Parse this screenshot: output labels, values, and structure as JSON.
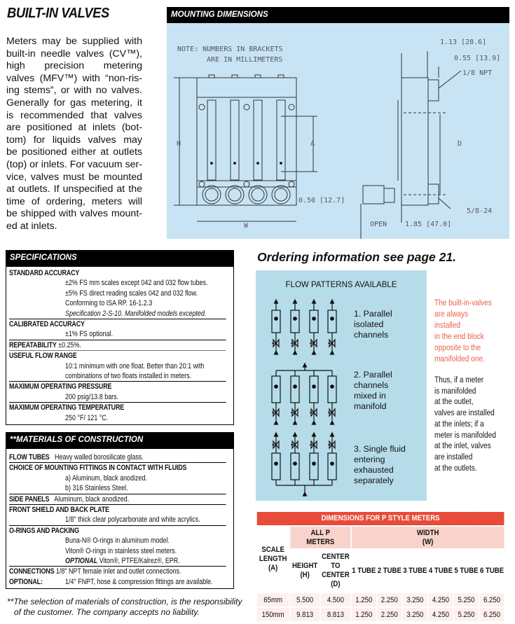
{
  "title": "BUILT-IN VALVES",
  "intro_lines": [
    "Meters may be supplied with",
    "built-in needle valves (CV™),",
    "high precision metering",
    "valves (MFV™) with “non-ris-",
    "ing stems”, or with no valves.",
    "Generally for gas metering, it",
    "is recommended that valves",
    "are positioned at inlets (bot-",
    "tom) for liquids valves may",
    "be positioned either at outlets",
    "(top) or inlets. For vacuum ser-",
    "vice, valves must be mounted",
    "at outlets. If unspecified at the",
    "time of ordering, meters will",
    "be shipped with valves mount-",
    "ed at inlets."
  ],
  "mounting": {
    "header": "MOUNTING DIMENSIONS",
    "note1": "NOTE: NUMBERS IN BRACKETS",
    "note2": "ARE IN MILLIMETERS",
    "H": "H",
    "A": "A",
    "W": "W",
    "D": "D",
    "d050": "0.50 [12.7]",
    "d113": "1.13 [28.6]",
    "d055": "0.55 [13.9]",
    "npt": "1/8 NPT",
    "thread": "5/8-24",
    "open": "OPEN",
    "d185": "1.85 [47.0]"
  },
  "specs": {
    "header": "SPECIFICATIONS",
    "std_label": "STANDARD ACCURACY",
    "std1": "±2% FS mm scales except 042 and 032 flow tubes.",
    "std2": "±5% FS direct reading scales 042 and 032 flow.",
    "std3": "Conforming to ISA RP. 16-1.2.3",
    "std4": "Specification 2-S-10. Manifolded models excepted.",
    "cal_label": "CALIBRATED ACCURACY",
    "cal1": "±1% FS optional.",
    "rep_label": "REPEATABILITY",
    "rep1": "±0.25%.",
    "flow_label": "USEFUL FLOW RANGE",
    "flow1": "10:1 minimum with one float. Better than 20:1 with",
    "flow2": "combinations of two floats installed in meters.",
    "pres_label": "MAXIMUM OPERATING PRESSURE",
    "pres1": "200 psig/13.8 bars.",
    "temp_label": "MAXIMUM OPERATING TEMPERATURE",
    "temp1": "250 °F/ 121 °C."
  },
  "materials": {
    "header": "**MATERIALS OF CONSTRUCTION",
    "tubes_label": "FLOW TUBES",
    "tubes1": "Heavy walled borosilicate glass.",
    "fit_label": "CHOICE OF MOUNTING FITTINGS IN CONTACT WITH FLUIDS",
    "fit1": "a)   Aluminum, black anodized.",
    "fit2": "b)  316 Stainless Steel.",
    "side_label": "SIDE PANELS",
    "side1": "Aluminum, black anodized.",
    "shield_label": "FRONT SHIELD AND BACK PLATE",
    "shield1": "1/8\" thick clear polycarbonate and white acrylics.",
    "oring_label": "O-RINGS AND PACKING",
    "oring1": "Buna-N® O-rings in aluminum model.",
    "oring2": "Viton® O-rings in stainless steel meters.",
    "oring3_em": "OPTIONAL",
    "oring3": " Viton®, PTFE/Kalrez®, EPR.",
    "conn_label": "CONNECTIONS",
    "conn1": "1/8\" NPT female inlet and outlet connections.",
    "opt_label": "OPTIONAL:",
    "opt1": "1/4\" FNPT, hose & compression fittings are available."
  },
  "footnote1": "**The selection of materials of construction, is the responsibility",
  "footnote2": "of the customer. The company accepts no liability.",
  "ordering": "Ordering information see page 21.",
  "flow": {
    "title": "FLOW PATTERNS AVAILABLE",
    "p1": [
      "1. Parallel",
      "isolated",
      "channels"
    ],
    "p2": [
      "2. Parallel",
      "channels",
      "mixed in",
      "manifold"
    ],
    "p3": [
      "3. Single fluid",
      "entering",
      "exhausted",
      "separately"
    ]
  },
  "note_red": [
    "The built-in-valves",
    "are always",
    "installed",
    "in the end block",
    "opposite to the",
    "manifolded one."
  ],
  "note_black": [
    "Thus, if a meter",
    "is manifolded",
    "at the outlet,",
    "valves are installed",
    "at the inlets; if a",
    "meter is manifolded",
    "at the inlet, valves",
    "are installed",
    "at the outlets."
  ],
  "table": {
    "title": "DIMENSIONS FOR P STYLE METERS",
    "allp": "ALL P METERS",
    "width": "WIDTH (W)",
    "scale": "SCALE LENGTH (A)",
    "height": "HEIGHT (H)",
    "center": "CENTER TO CENTER (D)",
    "tubes": [
      "1 TUBE",
      "2 TUBE",
      "3 TUBE",
      "4 TUBE",
      "5 TUBE",
      "6 TUBE"
    ],
    "rows": [
      [
        "65mm",
        "5.500",
        "4.500",
        "1.250",
        "2.250",
        "3.250",
        "4.250",
        "5.250",
        "6.250"
      ],
      [
        "150mm",
        "9.813",
        "8.813",
        "1.250",
        "2.250",
        "3.250",
        "4.250",
        "5.250",
        "6.250"
      ]
    ]
  },
  "colors": {
    "table_header": "#e84b3a",
    "table_sub": "#f8d3cc",
    "diagram_bg": "#c8e4f4",
    "flow_bg": "#b6dce9",
    "note_red": "#e8604a"
  }
}
